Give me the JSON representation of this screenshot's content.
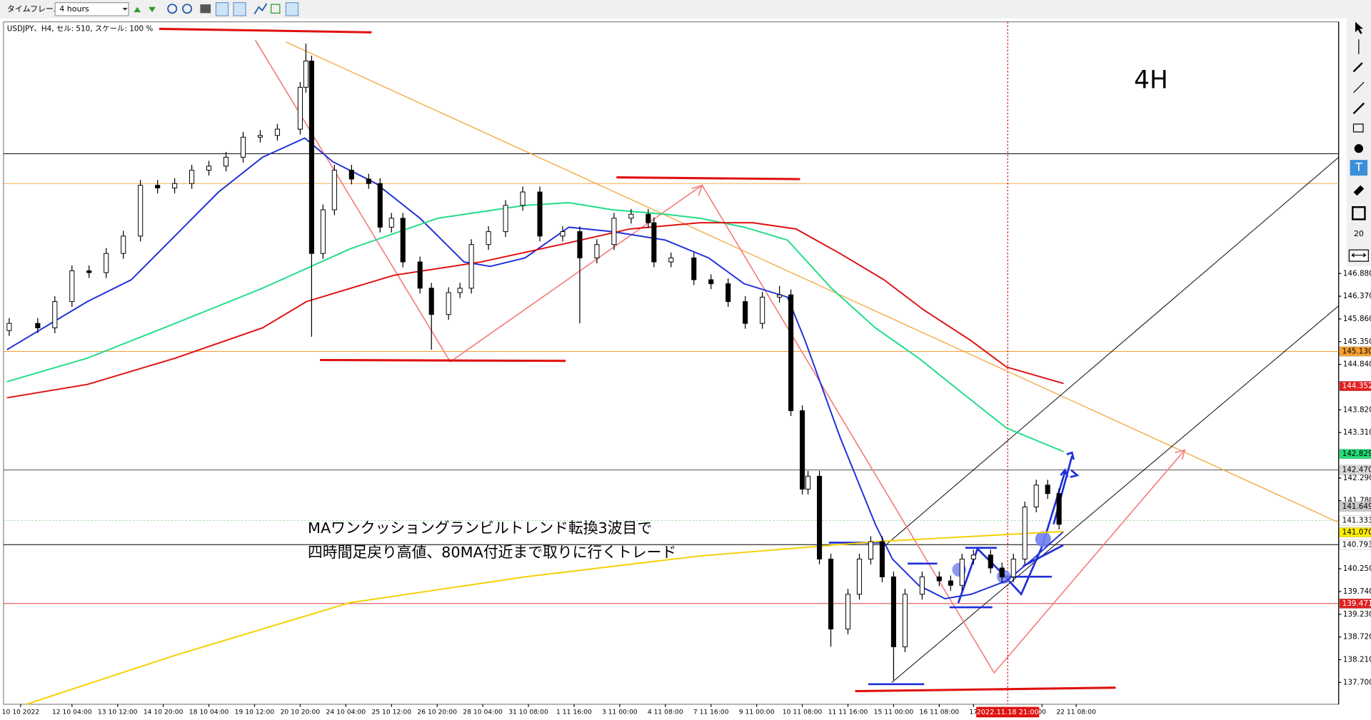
{
  "toolbar": {
    "timeframe_label": "タイムフレーム",
    "timeframe": "4 hours"
  },
  "drawing_toolbar_value": 20,
  "chart_data": {
    "type": "candlestick",
    "title": "USDJPY、H4, セル: 510, スケール: 100 %",
    "corner_label": "4H",
    "annotation": [
      "MAワンクッショングランビルトレンド転換3波目で",
      "四時間足戻り高値、80MA付近まで取りに行くトレード"
    ],
    "xlim": [
      0,
      234
    ],
    "ylim": [
      137.21,
      152.49
    ],
    "xticks": [
      {
        "value": 3,
        "label": "10 10 2022"
      },
      {
        "value": 12,
        "label": "12 10 04:00"
      },
      {
        "value": 20,
        "label": "13 10 12:00"
      },
      {
        "value": 28,
        "label": "14 10 20:00"
      },
      {
        "value": 36,
        "label": "18 10 04:00"
      },
      {
        "value": 44,
        "label": "19 10 12:00"
      },
      {
        "value": 52,
        "label": "20 10 20:00"
      },
      {
        "value": 60,
        "label": "24 10 04:00"
      },
      {
        "value": 68,
        "label": "25 10 12:00"
      },
      {
        "value": 76,
        "label": "26 10 20:00"
      },
      {
        "value": 84,
        "label": "28 10 04:00"
      },
      {
        "value": 92,
        "label": "31 10 08:00"
      },
      {
        "value": 100,
        "label": "1 11 16:00"
      },
      {
        "value": 108,
        "label": "3 11 00:00"
      },
      {
        "value": 116,
        "label": "4 11 08:00"
      },
      {
        "value": 124,
        "label": "7 11 16:00"
      },
      {
        "value": 132,
        "label": "9 11 00:00"
      },
      {
        "value": 140,
        "label": "10 11 08:00"
      },
      {
        "value": 148,
        "label": "11 11 16:00"
      },
      {
        "value": 156,
        "label": "15 11 00:00"
      },
      {
        "value": 164,
        "label": "16 11 08:00"
      },
      {
        "value": 170,
        "label": "17"
      },
      {
        "value": 182,
        "label": "00"
      },
      {
        "value": 188,
        "label": "22 11 08:00"
      }
    ],
    "yticks": [
      {
        "value": 137.7,
        "label": "137.700"
      },
      {
        "value": 138.21,
        "label": "138.210"
      },
      {
        "value": 138.72,
        "label": "138.720"
      },
      {
        "value": 139.23,
        "label": "139.230"
      },
      {
        "value": 139.74,
        "label": "139.740"
      },
      {
        "value": 140.25,
        "label": "140.250"
      },
      {
        "value": 141.78,
        "label": "141.780"
      },
      {
        "value": 142.29,
        "label": "142.290"
      },
      {
        "value": 143.31,
        "label": "143.310"
      },
      {
        "value": 143.82,
        "label": "143.820"
      },
      {
        "value": 144.84,
        "label": "144.840"
      },
      {
        "value": 145.35,
        "label": "145.350"
      },
      {
        "value": 145.86,
        "label": "145.860"
      },
      {
        "value": 146.37,
        "label": "146.370"
      },
      {
        "value": 146.88,
        "label": "146.880"
      }
    ],
    "crosshair": {
      "x": 176,
      "label": "2022.11.18 21:00"
    },
    "hlines": [
      {
        "value": 149.57,
        "color": "#000000"
      },
      {
        "value": 148.9,
        "color": "#f5a030"
      },
      {
        "value": 145.13,
        "color": "#f5a030"
      },
      {
        "value": 142.47,
        "color": "#555555"
      },
      {
        "value": 141.333,
        "color": "#9ad89a"
      },
      {
        "value": 140.793,
        "color": "#000000"
      },
      {
        "value": 139.471,
        "color": "#e02020"
      }
    ],
    "price_tags": [
      {
        "value": 145.13,
        "label": "145.130",
        "color": "#f5a030",
        "text_color": "#000000"
      },
      {
        "value": 144.352,
        "label": "144.352",
        "color": "#e02020",
        "text_color": "#ffffff"
      },
      {
        "value": 142.829,
        "label": "142.829",
        "color": "#22dd77",
        "text_color": "#000000"
      },
      {
        "value": 142.47,
        "label": "142.470",
        "color": "#d8d8d8",
        "text_color": "#000000"
      },
      {
        "value": 141.649,
        "label": "141.649",
        "color": "#c8c8c8",
        "text_color": "#000000"
      },
      {
        "value": 141.333,
        "label": "141.333",
        "color": "#ffffff",
        "text_color": "#000000"
      },
      {
        "value": 141.07,
        "label": "141.070",
        "color": "#ffee00",
        "text_color": "#000000"
      },
      {
        "value": 140.793,
        "label": "140.793",
        "color": "#ffffff",
        "text_color": "#000000"
      },
      {
        "value": 139.471,
        "label": "139.471",
        "color": "#e02020",
        "text_color": "#ffffff"
      }
    ],
    "candles": [
      {
        "x": 1,
        "open": 145.6,
        "high": 145.88,
        "low": 145.48,
        "close": 145.76
      },
      {
        "x": 6,
        "open": 145.76,
        "high": 145.88,
        "low": 145.54,
        "close": 145.66
      },
      {
        "x": 9,
        "open": 145.66,
        "high": 146.37,
        "low": 145.54,
        "close": 146.25
      },
      {
        "x": 12,
        "open": 146.25,
        "high": 147.06,
        "low": 146.13,
        "close": 146.94
      },
      {
        "x": 15,
        "open": 146.94,
        "high": 147.06,
        "low": 146.78,
        "close": 146.9
      },
      {
        "x": 18,
        "open": 146.9,
        "high": 147.45,
        "low": 146.78,
        "close": 147.33
      },
      {
        "x": 21,
        "open": 147.33,
        "high": 147.84,
        "low": 147.21,
        "close": 147.72
      },
      {
        "x": 24,
        "open": 147.72,
        "high": 148.98,
        "low": 147.6,
        "close": 148.86
      },
      {
        "x": 27,
        "open": 148.86,
        "high": 148.98,
        "low": 148.68,
        "close": 148.8
      },
      {
        "x": 30,
        "open": 148.8,
        "high": 149.02,
        "low": 148.68,
        "close": 148.9
      },
      {
        "x": 33,
        "open": 148.9,
        "high": 149.32,
        "low": 148.78,
        "close": 149.2
      },
      {
        "x": 36,
        "open": 149.2,
        "high": 149.41,
        "low": 149.08,
        "close": 149.29
      },
      {
        "x": 39,
        "open": 149.29,
        "high": 149.61,
        "low": 149.17,
        "close": 149.49
      },
      {
        "x": 42,
        "open": 149.49,
        "high": 150.06,
        "low": 149.37,
        "close": 149.94
      },
      {
        "x": 45,
        "open": 149.94,
        "high": 150.1,
        "low": 149.82,
        "close": 149.98
      },
      {
        "x": 48,
        "open": 149.98,
        "high": 150.24,
        "low": 149.86,
        "close": 150.12
      },
      {
        "x": 52,
        "open": 150.12,
        "high": 151.18,
        "low": 150.0,
        "close": 151.06
      },
      {
        "x": 53,
        "open": 151.06,
        "high": 152.04,
        "low": 150.94,
        "close": 151.65
      },
      {
        "x": 54,
        "open": 151.65,
        "high": 151.77,
        "low": 145.46,
        "close": 147.33
      },
      {
        "x": 56,
        "open": 147.33,
        "high": 148.43,
        "low": 147.21,
        "close": 148.31
      },
      {
        "x": 58,
        "open": 148.31,
        "high": 149.32,
        "low": 148.19,
        "close": 149.2
      },
      {
        "x": 61,
        "open": 149.2,
        "high": 149.32,
        "low": 148.88,
        "close": 149.0
      },
      {
        "x": 64,
        "open": 149.0,
        "high": 149.12,
        "low": 148.78,
        "close": 148.9
      },
      {
        "x": 66,
        "open": 148.9,
        "high": 149.02,
        "low": 147.8,
        "close": 147.92
      },
      {
        "x": 68,
        "open": 147.92,
        "high": 148.24,
        "low": 147.8,
        "close": 148.12
      },
      {
        "x": 70,
        "open": 148.12,
        "high": 148.24,
        "low": 147.02,
        "close": 147.14
      },
      {
        "x": 73,
        "open": 147.14,
        "high": 147.26,
        "low": 146.43,
        "close": 146.55
      },
      {
        "x": 75,
        "open": 146.55,
        "high": 146.67,
        "low": 145.17,
        "close": 145.96
      },
      {
        "x": 78,
        "open": 145.96,
        "high": 146.57,
        "low": 145.84,
        "close": 146.45
      },
      {
        "x": 80,
        "open": 146.45,
        "high": 146.67,
        "low": 146.33,
        "close": 146.55
      },
      {
        "x": 82,
        "open": 146.55,
        "high": 147.65,
        "low": 146.43,
        "close": 147.53
      },
      {
        "x": 85,
        "open": 147.53,
        "high": 147.94,
        "low": 147.41,
        "close": 147.82
      },
      {
        "x": 88,
        "open": 147.82,
        "high": 148.53,
        "low": 147.7,
        "close": 148.41
      },
      {
        "x": 91,
        "open": 148.41,
        "high": 148.83,
        "low": 148.29,
        "close": 148.71
      },
      {
        "x": 94,
        "open": 148.71,
        "high": 148.83,
        "low": 147.6,
        "close": 147.72
      },
      {
        "x": 98,
        "open": 147.72,
        "high": 147.94,
        "low": 147.6,
        "close": 147.82
      },
      {
        "x": 101,
        "open": 147.82,
        "high": 147.94,
        "low": 145.76,
        "close": 147.23
      },
      {
        "x": 104,
        "open": 147.23,
        "high": 147.65,
        "low": 147.11,
        "close": 147.53
      },
      {
        "x": 107,
        "open": 147.53,
        "high": 148.24,
        "low": 147.41,
        "close": 148.12
      },
      {
        "x": 110,
        "open": 148.12,
        "high": 148.33,
        "low": 148.0,
        "close": 148.21
      },
      {
        "x": 113,
        "open": 148.21,
        "high": 148.33,
        "low": 147.9,
        "close": 148.02
      },
      {
        "x": 114,
        "open": 148.02,
        "high": 148.14,
        "low": 147.02,
        "close": 147.14
      },
      {
        "x": 117,
        "open": 147.14,
        "high": 147.35,
        "low": 147.02,
        "close": 147.23
      },
      {
        "x": 121,
        "open": 147.23,
        "high": 147.35,
        "low": 146.62,
        "close": 146.74
      },
      {
        "x": 124,
        "open": 146.74,
        "high": 146.86,
        "low": 146.53,
        "close": 146.65
      },
      {
        "x": 127,
        "open": 146.65,
        "high": 146.77,
        "low": 146.13,
        "close": 146.25
      },
      {
        "x": 130,
        "open": 146.25,
        "high": 146.37,
        "low": 145.64,
        "close": 145.76
      },
      {
        "x": 133,
        "open": 145.76,
        "high": 146.47,
        "low": 145.64,
        "close": 146.35
      },
      {
        "x": 136,
        "open": 146.35,
        "high": 146.6,
        "low": 146.23,
        "close": 146.4
      },
      {
        "x": 138,
        "open": 146.4,
        "high": 146.52,
        "low": 143.68,
        "close": 143.8
      },
      {
        "x": 140,
        "open": 143.8,
        "high": 143.92,
        "low": 141.92,
        "close": 142.04
      },
      {
        "x": 141,
        "open": 142.04,
        "high": 142.45,
        "low": 141.92,
        "close": 142.33
      },
      {
        "x": 143,
        "open": 142.33,
        "high": 142.45,
        "low": 140.35,
        "close": 140.47
      },
      {
        "x": 145,
        "open": 140.47,
        "high": 140.59,
        "low": 138.5,
        "close": 138.9
      },
      {
        "x": 148,
        "open": 138.9,
        "high": 139.8,
        "low": 138.78,
        "close": 139.68
      },
      {
        "x": 150,
        "open": 139.68,
        "high": 140.59,
        "low": 139.56,
        "close": 140.47
      },
      {
        "x": 152,
        "open": 140.47,
        "high": 140.98,
        "low": 140.35,
        "close": 140.86
      },
      {
        "x": 154,
        "open": 140.86,
        "high": 140.98,
        "low": 139.95,
        "close": 140.07
      },
      {
        "x": 156,
        "open": 140.07,
        "high": 140.19,
        "low": 137.75,
        "close": 138.5
      },
      {
        "x": 158,
        "open": 138.5,
        "high": 139.8,
        "low": 138.38,
        "close": 139.68
      },
      {
        "x": 161,
        "open": 139.68,
        "high": 140.19,
        "low": 139.56,
        "close": 140.07
      },
      {
        "x": 164,
        "open": 140.07,
        "high": 140.19,
        "low": 139.86,
        "close": 139.98
      },
      {
        "x": 166,
        "open": 139.98,
        "high": 140.1,
        "low": 139.76,
        "close": 139.88
      },
      {
        "x": 168,
        "open": 139.88,
        "high": 140.59,
        "low": 139.76,
        "close": 140.47
      },
      {
        "x": 170,
        "open": 140.47,
        "high": 140.68,
        "low": 140.35,
        "close": 140.56
      },
      {
        "x": 173,
        "open": 140.56,
        "high": 140.68,
        "low": 140.15,
        "close": 140.27
      },
      {
        "x": 175,
        "open": 140.27,
        "high": 140.39,
        "low": 139.95,
        "close": 140.07
      },
      {
        "x": 177,
        "open": 140.07,
        "high": 140.59,
        "low": 139.95,
        "close": 140.47
      },
      {
        "x": 179,
        "open": 140.47,
        "high": 141.76,
        "low": 140.35,
        "close": 141.64
      },
      {
        "x": 181,
        "open": 141.64,
        "high": 142.25,
        "low": 141.52,
        "close": 142.13
      },
      {
        "x": 183,
        "open": 142.13,
        "high": 142.25,
        "low": 141.82,
        "close": 141.94
      },
      {
        "x": 185,
        "open": 141.94,
        "high": 142.06,
        "low": 141.13,
        "close": 141.25
      }
    ],
    "series": [
      {
        "color": "#1f2fd8",
        "x": [
          0.6,
          14.7,
          22.4,
          37.7,
          45.4,
          52.8,
          57.7,
          65.3,
          73.0,
          80.7,
          85.3,
          91.4,
          99.1,
          106.7,
          116.0,
          123.6,
          129.8,
          137.4,
          140.5,
          146.6,
          152.8,
          155.8,
          160.4,
          165.0,
          169.6,
          175.8,
          180.4,
          185.8
        ],
        "values": [
          145.17,
          146.25,
          146.74,
          148.71,
          149.49,
          149.92,
          149.39,
          148.9,
          148.12,
          147.14,
          147.04,
          147.23,
          147.92,
          147.82,
          147.63,
          147.23,
          146.65,
          146.35,
          145.37,
          143.21,
          141.25,
          140.47,
          139.88,
          139.58,
          139.68,
          139.98,
          140.47,
          141.09
        ]
      },
      {
        "color": "#22dd88",
        "x": [
          0.6,
          14.7,
          30.1,
          45.4,
          60.7,
          76.1,
          91.4,
          99.1,
          106.7,
          116.0,
          122.1,
          129.8,
          137.4,
          145.1,
          152.8,
          160.4,
          168.1,
          175.8,
          185.8
        ],
        "values": [
          144.45,
          144.98,
          145.76,
          146.55,
          147.43,
          148.12,
          148.41,
          148.47,
          148.31,
          148.21,
          148.12,
          147.92,
          147.63,
          146.55,
          145.66,
          144.98,
          144.19,
          143.41,
          142.88
        ]
      },
      {
        "color": "#e01010",
        "x": [
          0.6,
          14.7,
          30.1,
          45.4,
          53.1,
          68.4,
          83.7,
          99.1,
          109.8,
          122.1,
          131.3,
          138.9,
          146.6,
          154.3,
          161.3,
          169.6,
          175.8,
          185.8
        ],
        "values": [
          144.09,
          144.39,
          144.98,
          145.66,
          146.25,
          146.84,
          147.14,
          147.57,
          147.88,
          148.02,
          148.02,
          147.88,
          147.33,
          146.74,
          146.06,
          145.37,
          144.78,
          144.41
        ]
      },
      {
        "color": "#f5d000",
        "x": [
          4.0,
          30.1,
          60.7,
          91.4,
          122.1,
          152.8,
          185.8
        ],
        "values": [
          137.21,
          138.31,
          139.49,
          140.07,
          140.54,
          140.86,
          141.09
        ]
      }
    ]
  }
}
